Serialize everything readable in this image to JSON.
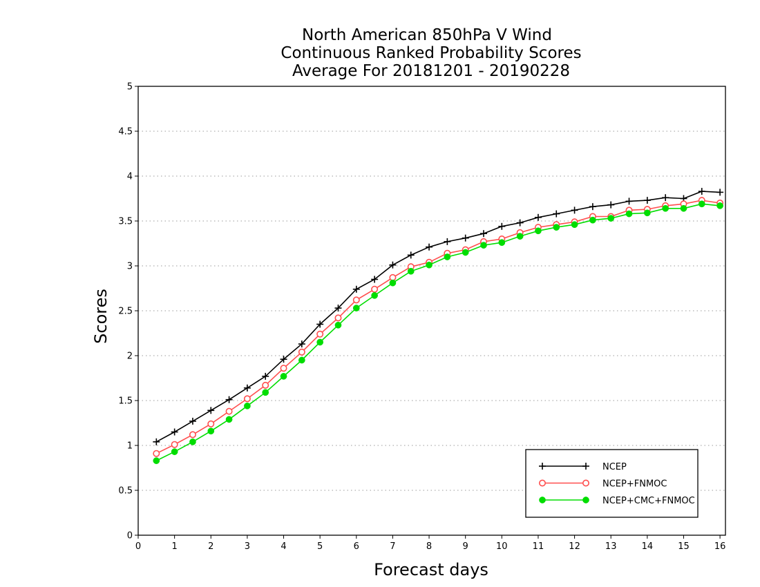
{
  "chart_data": {
    "type": "line",
    "title_lines": [
      "North American 850hPa V Wind",
      "Continuous Ranked Probability Scores",
      "Average For 20181201 - 20190228"
    ],
    "xlabel": "Forecast days",
    "ylabel": "Scores",
    "xlim": [
      0,
      16.15
    ],
    "ylim": [
      0,
      5
    ],
    "xticks": [
      "0",
      "1",
      "2",
      "3",
      "4",
      "5",
      "6",
      "7",
      "8",
      "9",
      "10",
      "11",
      "12",
      "13",
      "14",
      "15",
      "16"
    ],
    "yticks": [
      "0",
      "0.5",
      "1",
      "1.5",
      "2",
      "2.5",
      "3",
      "3.5",
      "4",
      "4.5",
      "5"
    ],
    "grid": "horizontal dotted",
    "legend_position": "bottom-right",
    "x": [
      0.5,
      1,
      1.5,
      2,
      2.5,
      3,
      3.5,
      4,
      4.5,
      5,
      5.5,
      6,
      6.5,
      7,
      7.5,
      8,
      8.5,
      9,
      9.5,
      10,
      10.5,
      11,
      11.5,
      12,
      12.5,
      13,
      13.5,
      14,
      14.5,
      15,
      15.5,
      16
    ],
    "series": [
      {
        "name": "NCEP",
        "color": "#000000",
        "marker": "plus",
        "values": [
          1.04,
          1.15,
          1.27,
          1.39,
          1.51,
          1.64,
          1.77,
          1.96,
          2.13,
          2.35,
          2.53,
          2.74,
          2.85,
          3.01,
          3.12,
          3.21,
          3.27,
          3.31,
          3.36,
          3.44,
          3.48,
          3.54,
          3.58,
          3.62,
          3.66,
          3.68,
          3.72,
          3.73,
          3.76,
          3.75,
          3.83,
          3.82
        ]
      },
      {
        "name": "NCEP+FNMOC",
        "color": "#ff4d4d",
        "marker": "open-circle",
        "values": [
          0.91,
          1.01,
          1.12,
          1.24,
          1.38,
          1.52,
          1.67,
          1.86,
          2.04,
          2.24,
          2.42,
          2.62,
          2.74,
          2.87,
          2.99,
          3.04,
          3.14,
          3.18,
          3.27,
          3.3,
          3.37,
          3.43,
          3.46,
          3.49,
          3.55,
          3.55,
          3.62,
          3.63,
          3.67,
          3.69,
          3.73,
          3.7
        ]
      },
      {
        "name": "NCEP+CMC+FNMOC",
        "color": "#00dd00",
        "marker": "filled-circle",
        "values": [
          0.83,
          0.93,
          1.04,
          1.16,
          1.29,
          1.44,
          1.59,
          1.77,
          1.95,
          2.15,
          2.34,
          2.53,
          2.67,
          2.81,
          2.94,
          3.01,
          3.1,
          3.15,
          3.23,
          3.26,
          3.33,
          3.39,
          3.43,
          3.46,
          3.51,
          3.53,
          3.58,
          3.59,
          3.64,
          3.64,
          3.69,
          3.67
        ]
      }
    ]
  }
}
